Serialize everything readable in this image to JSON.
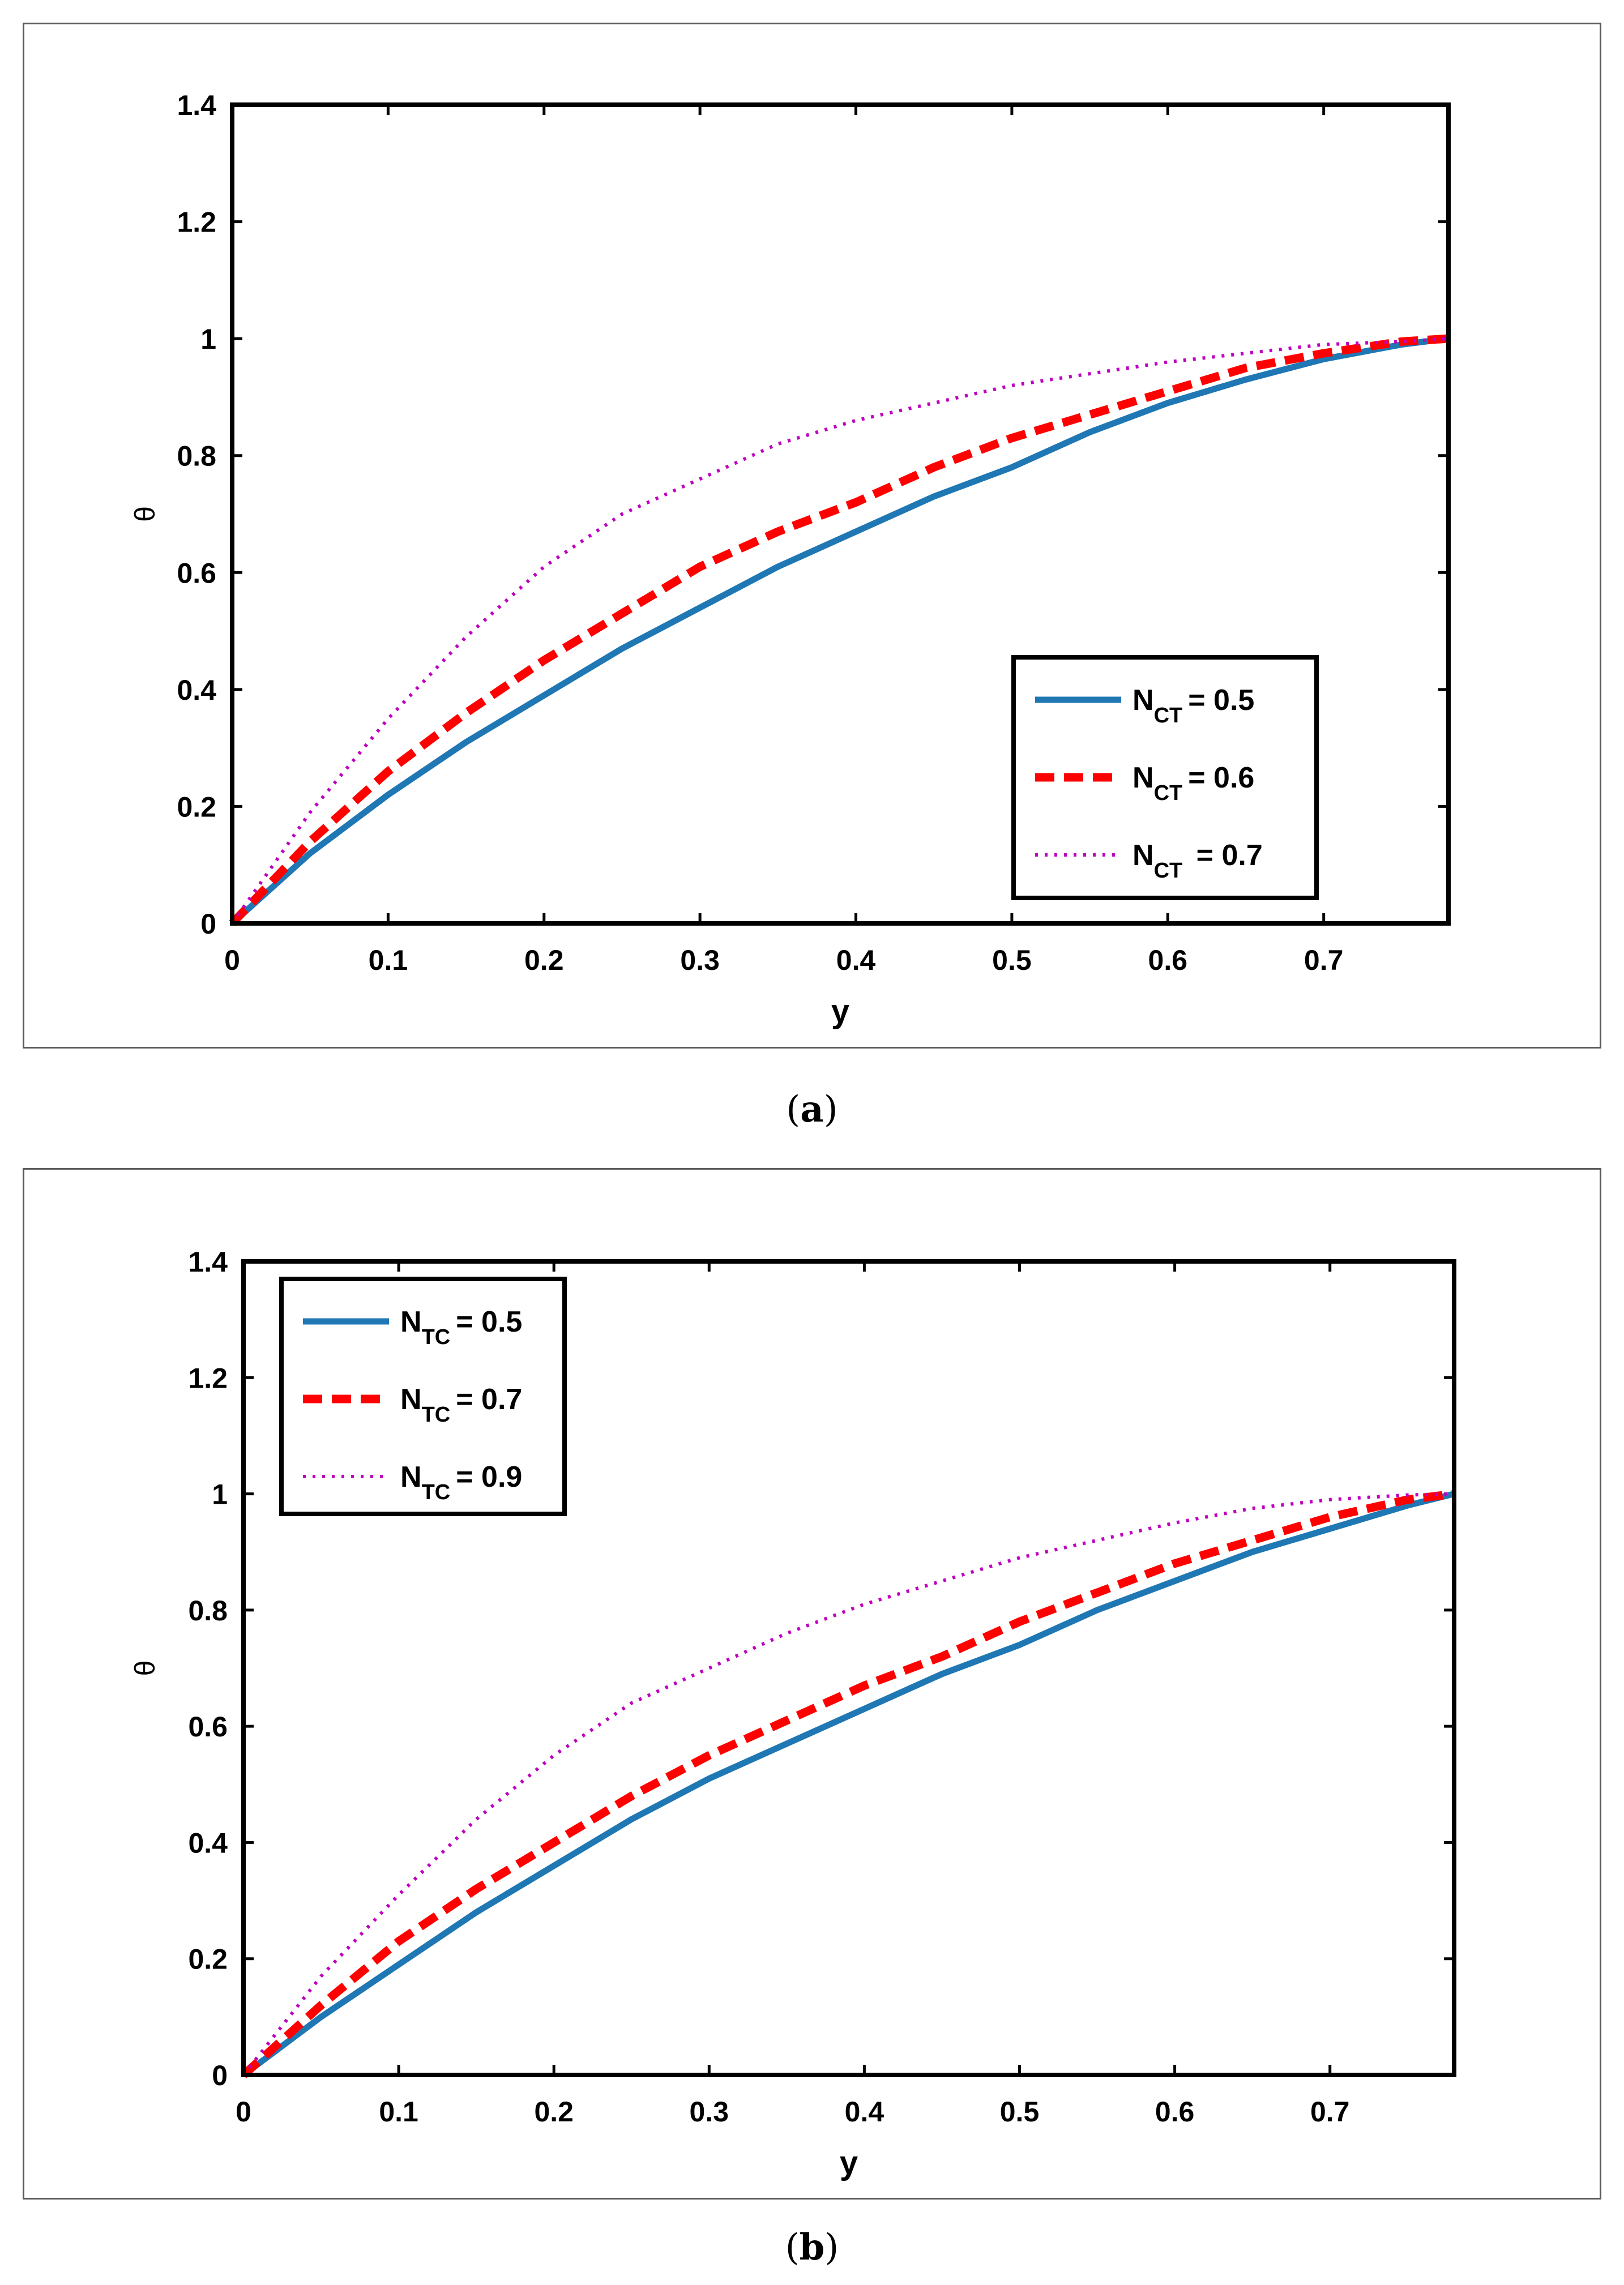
{
  "colors": {
    "series1": "#1f77b4",
    "series2": "#ff0000",
    "series3": "#bf00bf",
    "axes": "#000000"
  },
  "captions": {
    "a": {
      "open": "(",
      "label": "a",
      "close": ")"
    },
    "b": {
      "open": "(",
      "label": "b",
      "close": ")"
    }
  },
  "chart_data": [
    {
      "type": "line",
      "panel": "a",
      "xlabel": "y",
      "ylabel": "θ",
      "xlim": [
        0,
        0.78
      ],
      "ylim": [
        0,
        1.4
      ],
      "xticks": [
        "0",
        "0.1",
        "0.2",
        "0.3",
        "0.4",
        "0.5",
        "0.6",
        "0.7"
      ],
      "yticks": [
        "0",
        "0.2",
        "0.4",
        "0.6",
        "0.8",
        "1",
        "1.2",
        "1.4"
      ],
      "legend_position": "lower-right",
      "series": [
        {
          "name": "N_CT = 0.5",
          "main": "N",
          "sub": "CT",
          "value_text": "= 0.5",
          "style": "solid",
          "x": [
            0,
            0.05,
            0.1,
            0.15,
            0.2,
            0.25,
            0.3,
            0.35,
            0.4,
            0.45,
            0.5,
            0.55,
            0.6,
            0.65,
            0.7,
            0.75,
            0.78
          ],
          "y": [
            0,
            0.12,
            0.22,
            0.31,
            0.39,
            0.47,
            0.54,
            0.61,
            0.67,
            0.73,
            0.78,
            0.84,
            0.89,
            0.93,
            0.965,
            0.99,
            1.0
          ]
        },
        {
          "name": "N_CT = 0.6",
          "main": "N",
          "sub": "CT",
          "value_text": "= 0.6",
          "style": "dashed",
          "x": [
            0,
            0.05,
            0.1,
            0.15,
            0.2,
            0.25,
            0.3,
            0.35,
            0.4,
            0.45,
            0.5,
            0.55,
            0.6,
            0.65,
            0.7,
            0.75,
            0.78
          ],
          "y": [
            0,
            0.14,
            0.26,
            0.36,
            0.45,
            0.53,
            0.61,
            0.67,
            0.72,
            0.78,
            0.83,
            0.87,
            0.91,
            0.95,
            0.975,
            0.995,
            1.0
          ]
        },
        {
          "name": "N_CT = 0.7",
          "main": "N",
          "sub": "CT",
          "value_text": " = 0.7",
          "style": "dotted",
          "x": [
            0,
            0.05,
            0.1,
            0.15,
            0.2,
            0.25,
            0.3,
            0.35,
            0.4,
            0.45,
            0.5,
            0.55,
            0.6,
            0.65,
            0.7,
            0.75,
            0.78
          ],
          "y": [
            0,
            0.19,
            0.35,
            0.49,
            0.61,
            0.7,
            0.76,
            0.82,
            0.86,
            0.89,
            0.92,
            0.94,
            0.96,
            0.975,
            0.99,
            0.995,
            1.0
          ]
        }
      ]
    },
    {
      "type": "line",
      "panel": "b",
      "xlabel": "y",
      "ylabel": "θ",
      "xlim": [
        0,
        0.78
      ],
      "ylim": [
        0,
        1.4
      ],
      "xticks": [
        "0",
        "0.1",
        "0.2",
        "0.3",
        "0.4",
        "0.5",
        "0.6",
        "0.7"
      ],
      "yticks": [
        "0",
        "0.2",
        "0.4",
        "0.6",
        "0.8",
        "1",
        "1.2",
        "1.4"
      ],
      "legend_position": "top-left",
      "series": [
        {
          "name": "N_TC = 0.5",
          "main": "N",
          "sub": "TC",
          "value_text": "= 0.5",
          "style": "solid",
          "x": [
            0,
            0.05,
            0.1,
            0.15,
            0.2,
            0.25,
            0.3,
            0.35,
            0.4,
            0.45,
            0.5,
            0.55,
            0.6,
            0.65,
            0.7,
            0.75,
            0.78
          ],
          "y": [
            0,
            0.1,
            0.19,
            0.28,
            0.36,
            0.44,
            0.51,
            0.57,
            0.63,
            0.69,
            0.74,
            0.8,
            0.85,
            0.9,
            0.94,
            0.98,
            1.0
          ]
        },
        {
          "name": "N_TC = 0.7",
          "main": "N",
          "sub": "TC",
          "value_text": "= 0.7",
          "style": "dashed",
          "x": [
            0,
            0.05,
            0.1,
            0.15,
            0.2,
            0.25,
            0.3,
            0.35,
            0.4,
            0.45,
            0.5,
            0.55,
            0.6,
            0.65,
            0.7,
            0.75,
            0.78
          ],
          "y": [
            0,
            0.12,
            0.23,
            0.32,
            0.4,
            0.48,
            0.55,
            0.61,
            0.67,
            0.72,
            0.78,
            0.83,
            0.88,
            0.92,
            0.96,
            0.99,
            1.0
          ]
        },
        {
          "name": "N_TC = 0.9",
          "main": "N",
          "sub": "TC",
          "value_text": "= 0.9",
          "style": "dotted",
          "x": [
            0,
            0.05,
            0.1,
            0.15,
            0.2,
            0.25,
            0.3,
            0.35,
            0.4,
            0.45,
            0.5,
            0.55,
            0.6,
            0.65,
            0.7,
            0.75,
            0.78
          ],
          "y": [
            0,
            0.17,
            0.31,
            0.44,
            0.55,
            0.64,
            0.7,
            0.76,
            0.81,
            0.85,
            0.89,
            0.92,
            0.95,
            0.975,
            0.99,
            0.998,
            1.0
          ]
        }
      ]
    }
  ]
}
